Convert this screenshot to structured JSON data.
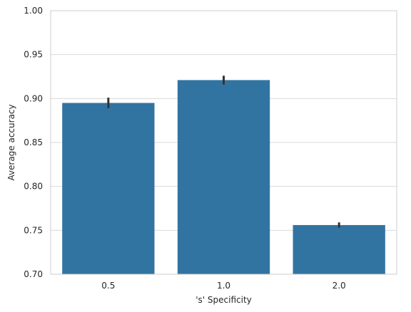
{
  "chart_data": {
    "type": "bar",
    "categories": [
      "0.5",
      "1.0",
      "2.0"
    ],
    "values": [
      0.895,
      0.921,
      0.756
    ],
    "error_bars": [
      {
        "low": 0.889,
        "high": 0.901
      },
      {
        "low": 0.916,
        "high": 0.926
      },
      {
        "low": 0.753,
        "high": 0.759
      }
    ],
    "title": "",
    "xlabel": "'s' Specificity",
    "ylabel": "Average accuracy",
    "ylim": [
      0.7,
      1.0
    ],
    "yticks": [
      "0.70",
      "0.75",
      "0.80",
      "0.85",
      "0.90",
      "0.95",
      "1.00"
    ],
    "grid": "horizontal",
    "colors": {
      "bar": "#3274a1",
      "error": "#333333",
      "grid": "#d9d9d9",
      "spine": "#cccccc"
    }
  }
}
